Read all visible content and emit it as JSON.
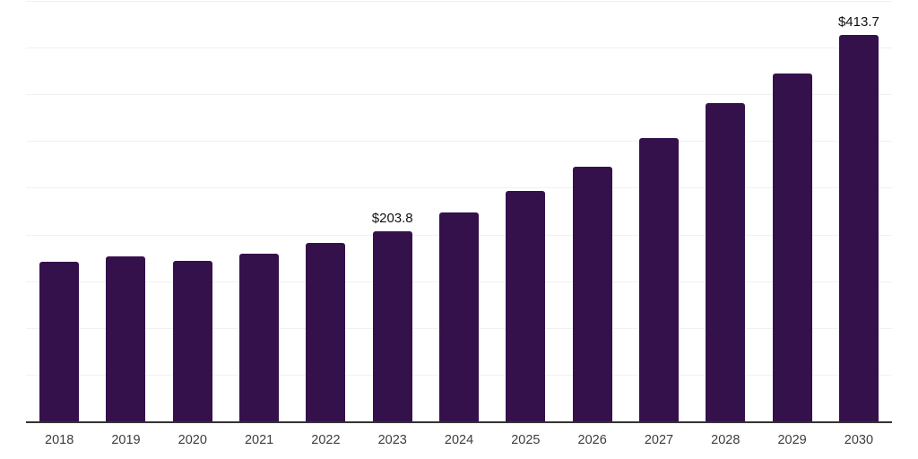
{
  "chart_data": {
    "type": "bar",
    "title": "",
    "xlabel": "",
    "ylabel": "",
    "categories": [
      "2018",
      "2019",
      "2020",
      "2021",
      "2022",
      "2023",
      "2024",
      "2025",
      "2026",
      "2027",
      "2028",
      "2029",
      "2030"
    ],
    "values": [
      170.5,
      176.5,
      172.0,
      179.5,
      191.0,
      203.8,
      224.0,
      247.0,
      273.0,
      303.0,
      340.5,
      372.0,
      413.7
    ],
    "value_labels": [
      "",
      "",
      "",
      "",
      "",
      "$203.8",
      "",
      "",
      "",
      "",
      "",
      "",
      "$413.7"
    ],
    "ylim": [
      0,
      450
    ],
    "gridline_step": 50,
    "grid": "horizontal",
    "legend_position": "none",
    "colors": {
      "bar": "#35114b",
      "gridline": "#f1f1f1",
      "axis": "#333333",
      "tick_label": "#3d3d3d",
      "value_label": "#111111",
      "background": "#ffffff"
    }
  }
}
